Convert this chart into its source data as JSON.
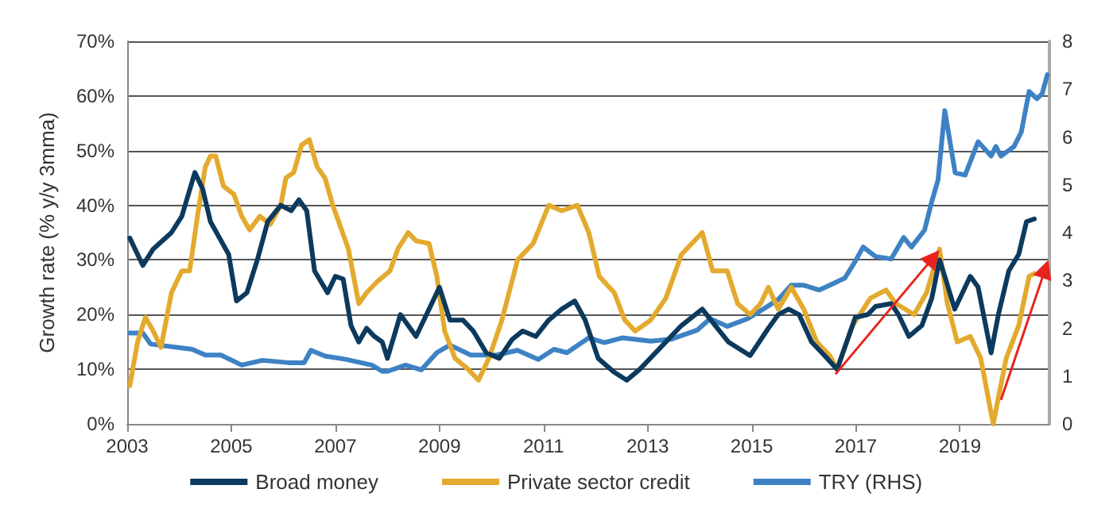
{
  "chart_data": {
    "type": "line",
    "ylabel": "Growth rate (% y/y 3mma)",
    "xlim": [
      2003,
      2020.72
    ],
    "xticks": [
      2003,
      2005,
      2007,
      2009,
      2011,
      2013,
      2015,
      2017,
      2019
    ],
    "ylim": [
      0,
      70
    ],
    "yticks": [
      {
        "value": 0,
        "label": "0%"
      },
      {
        "value": 10,
        "label": "10%"
      },
      {
        "value": 20,
        "label": "20%"
      },
      {
        "value": 30,
        "label": "30%"
      },
      {
        "value": 40,
        "label": "40%"
      },
      {
        "value": 50,
        "label": "50%"
      },
      {
        "value": 60,
        "label": "60%"
      },
      {
        "value": 70,
        "label": "70%"
      }
    ],
    "y2lim": [
      0,
      8
    ],
    "y2ticks": [
      0,
      1,
      2,
      3,
      4,
      5,
      6,
      7,
      8
    ],
    "grid": "y",
    "legend": "bottom",
    "marker": "none",
    "line_style": "solid",
    "series": [
      {
        "name": "Broad money",
        "color": "#0c3a5e",
        "x": [
          2003.05,
          2003.3,
          2003.5,
          2003.85,
          2004.05,
          2004.3,
          2004.45,
          2004.6,
          2004.95,
          2005.1,
          2005.3,
          2005.5,
          2005.7,
          2005.95,
          2006.15,
          2006.3,
          2006.45,
          2006.6,
          2006.85,
          2007.0,
          2007.15,
          2007.3,
          2007.45,
          2007.6,
          2007.75,
          2007.9,
          2008.0,
          2008.25,
          2008.55,
          2008.7,
          2009.0,
          2009.2,
          2009.45,
          2009.65,
          2009.9,
          2010.15,
          2010.4,
          2010.6,
          2010.85,
          2011.1,
          2011.35,
          2011.6,
          2011.8,
          2012.05,
          2012.35,
          2012.6,
          2012.85,
          2013.25,
          2013.65,
          2014.05,
          2014.3,
          2014.55,
          2014.97,
          2015.32,
          2015.51,
          2015.71,
          2015.91,
          2016.15,
          2016.4,
          2016.64,
          2016.99,
          2017.23,
          2017.38,
          2017.68,
          2017.82,
          2018.02,
          2018.27,
          2018.46,
          2018.61,
          2018.71,
          2018.9,
          2019.05,
          2019.2,
          2019.35,
          2019.6,
          2019.74,
          2019.94,
          2020.13,
          2020.28,
          2020.43
        ],
        "values": [
          34,
          29,
          32,
          35,
          38,
          46,
          43,
          37,
          31,
          22.5,
          24,
          30,
          37,
          40,
          39,
          41,
          39,
          28,
          24,
          27,
          26.5,
          18,
          15,
          17.5,
          16,
          15,
          12,
          20,
          16,
          19,
          25,
          19,
          19,
          17,
          13,
          12,
          15.5,
          17,
          16,
          19,
          21,
          22.5,
          19,
          12,
          9.5,
          8,
          10,
          14,
          18,
          21,
          18,
          15,
          12.5,
          17.5,
          20,
          21,
          20,
          15,
          12.5,
          10,
          19.5,
          20,
          21.5,
          22,
          20,
          16,
          18,
          23,
          30,
          27,
          21,
          24,
          27,
          25,
          13,
          20,
          28,
          31,
          37,
          37.5
        ]
      },
      {
        "name": "Private sector credit",
        "color": "#e3aa2e",
        "x": [
          2003.05,
          2003.2,
          2003.35,
          2003.5,
          2003.65,
          2003.85,
          2004.05,
          2004.2,
          2004.35,
          2004.5,
          2004.6,
          2004.7,
          2004.85,
          2005.05,
          2005.2,
          2005.35,
          2005.55,
          2005.75,
          2005.95,
          2006.05,
          2006.2,
          2006.35,
          2006.5,
          2006.65,
          2006.8,
          2006.95,
          2007.1,
          2007.25,
          2007.45,
          2007.6,
          2007.8,
          2008.05,
          2008.2,
          2008.4,
          2008.55,
          2008.8,
          2008.95,
          2009.1,
          2009.3,
          2009.55,
          2009.75,
          2009.95,
          2010.2,
          2010.5,
          2010.8,
          2011.1,
          2011.35,
          2011.65,
          2011.87,
          2012.07,
          2012.36,
          2012.56,
          2012.76,
          2013.06,
          2013.35,
          2013.65,
          2013.85,
          2014.05,
          2014.25,
          2014.53,
          2014.73,
          2014.97,
          2015.17,
          2015.32,
          2015.51,
          2015.76,
          2016.0,
          2016.25,
          2016.5,
          2016.64,
          2016.94,
          2017.28,
          2017.58,
          2017.77,
          2018.12,
          2018.36,
          2018.61,
          2018.76,
          2018.95,
          2019.2,
          2019.4,
          2019.64,
          2019.89,
          2020.13,
          2020.33,
          2020.43
        ],
        "values": [
          7,
          15,
          19.5,
          17,
          14,
          24,
          28,
          28,
          38,
          47,
          49,
          49,
          43.5,
          42,
          38,
          35.5,
          38,
          36.5,
          40,
          45,
          46,
          51,
          52,
          47,
          45,
          40,
          36,
          32,
          22,
          24,
          26,
          28,
          32,
          35,
          33.5,
          33,
          27,
          17,
          12,
          10,
          8,
          12,
          19,
          30,
          33,
          40,
          39,
          40,
          35,
          27,
          24,
          19,
          17,
          19,
          23,
          31,
          33,
          35,
          28,
          28,
          22,
          20,
          22,
          25,
          21,
          25,
          21,
          15,
          12.5,
          10,
          18,
          23,
          24.5,
          22,
          20,
          24,
          32,
          22,
          15,
          16,
          12,
          0,
          12,
          18,
          27,
          27.5
        ]
      },
      {
        "name": "TRY (RHS)",
        "color": "#3e82c4",
        "axis": "y2",
        "x": [
          2003.05,
          2003.3,
          2003.45,
          2004.25,
          2004.5,
          2004.8,
          2005.2,
          2005.6,
          2006.1,
          2006.4,
          2006.53,
          2006.8,
          2007.2,
          2007.7,
          2007.9,
          2008.0,
          2008.35,
          2008.65,
          2008.95,
          2009.2,
          2009.6,
          2010.1,
          2010.5,
          2010.9,
          2011.2,
          2011.45,
          2011.87,
          2012.17,
          2012.51,
          2013.06,
          2013.45,
          2013.95,
          2014.2,
          2014.53,
          2014.92,
          2015.22,
          2015.51,
          2015.76,
          2016.0,
          2016.3,
          2016.5,
          2016.79,
          2016.99,
          2017.14,
          2017.38,
          2017.68,
          2017.92,
          2018.07,
          2018.32,
          2018.46,
          2018.58,
          2018.71,
          2018.91,
          2019.1,
          2019.35,
          2019.6,
          2019.69,
          2019.79,
          2020.04,
          2020.18,
          2020.33,
          2020.48,
          2020.58,
          2020.68
        ],
        "values": [
          1.9,
          1.9,
          1.67,
          1.56,
          1.44,
          1.44,
          1.23,
          1.33,
          1.28,
          1.28,
          1.54,
          1.42,
          1.35,
          1.23,
          1.1,
          1.1,
          1.23,
          1.13,
          1.49,
          1.65,
          1.44,
          1.44,
          1.54,
          1.35,
          1.56,
          1.49,
          1.8,
          1.7,
          1.8,
          1.73,
          1.77,
          1.96,
          2.2,
          2.04,
          2.2,
          2.4,
          2.6,
          2.9,
          2.9,
          2.8,
          2.9,
          3.05,
          3.4,
          3.7,
          3.5,
          3.45,
          3.9,
          3.7,
          4.05,
          4.65,
          5.1,
          6.55,
          5.25,
          5.2,
          5.9,
          5.6,
          5.8,
          5.6,
          5.8,
          6.1,
          6.95,
          6.8,
          6.9,
          7.3
        ]
      }
    ]
  }
}
